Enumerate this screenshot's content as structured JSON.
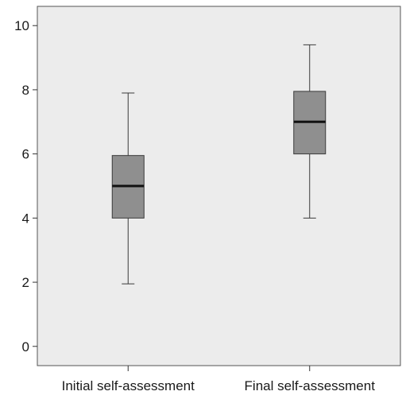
{
  "chart_data": {
    "type": "box",
    "title": "",
    "xlabel": "",
    "ylabel": "",
    "ylim": [
      -0.6,
      10.6
    ],
    "yticks": [
      0,
      2,
      4,
      6,
      8,
      10
    ],
    "grid": false,
    "categories": [
      "Initial self-assessment",
      "Final self-assessment"
    ],
    "boxes": [
      {
        "category": "Initial self-assessment",
        "min": 1.95,
        "q1": 4.0,
        "median": 5.0,
        "q3": 5.95,
        "max": 7.9
      },
      {
        "category": "Final self-assessment",
        "min": 4.0,
        "q1": 6.0,
        "median": 7.0,
        "q3": 7.95,
        "max": 9.4
      }
    ],
    "colors": {
      "plot_background": "#ececec",
      "box_fill": "#8f8f8f",
      "box_stroke": "#3a3a3a",
      "median_stroke": "#111111",
      "axis": "#333333"
    }
  }
}
